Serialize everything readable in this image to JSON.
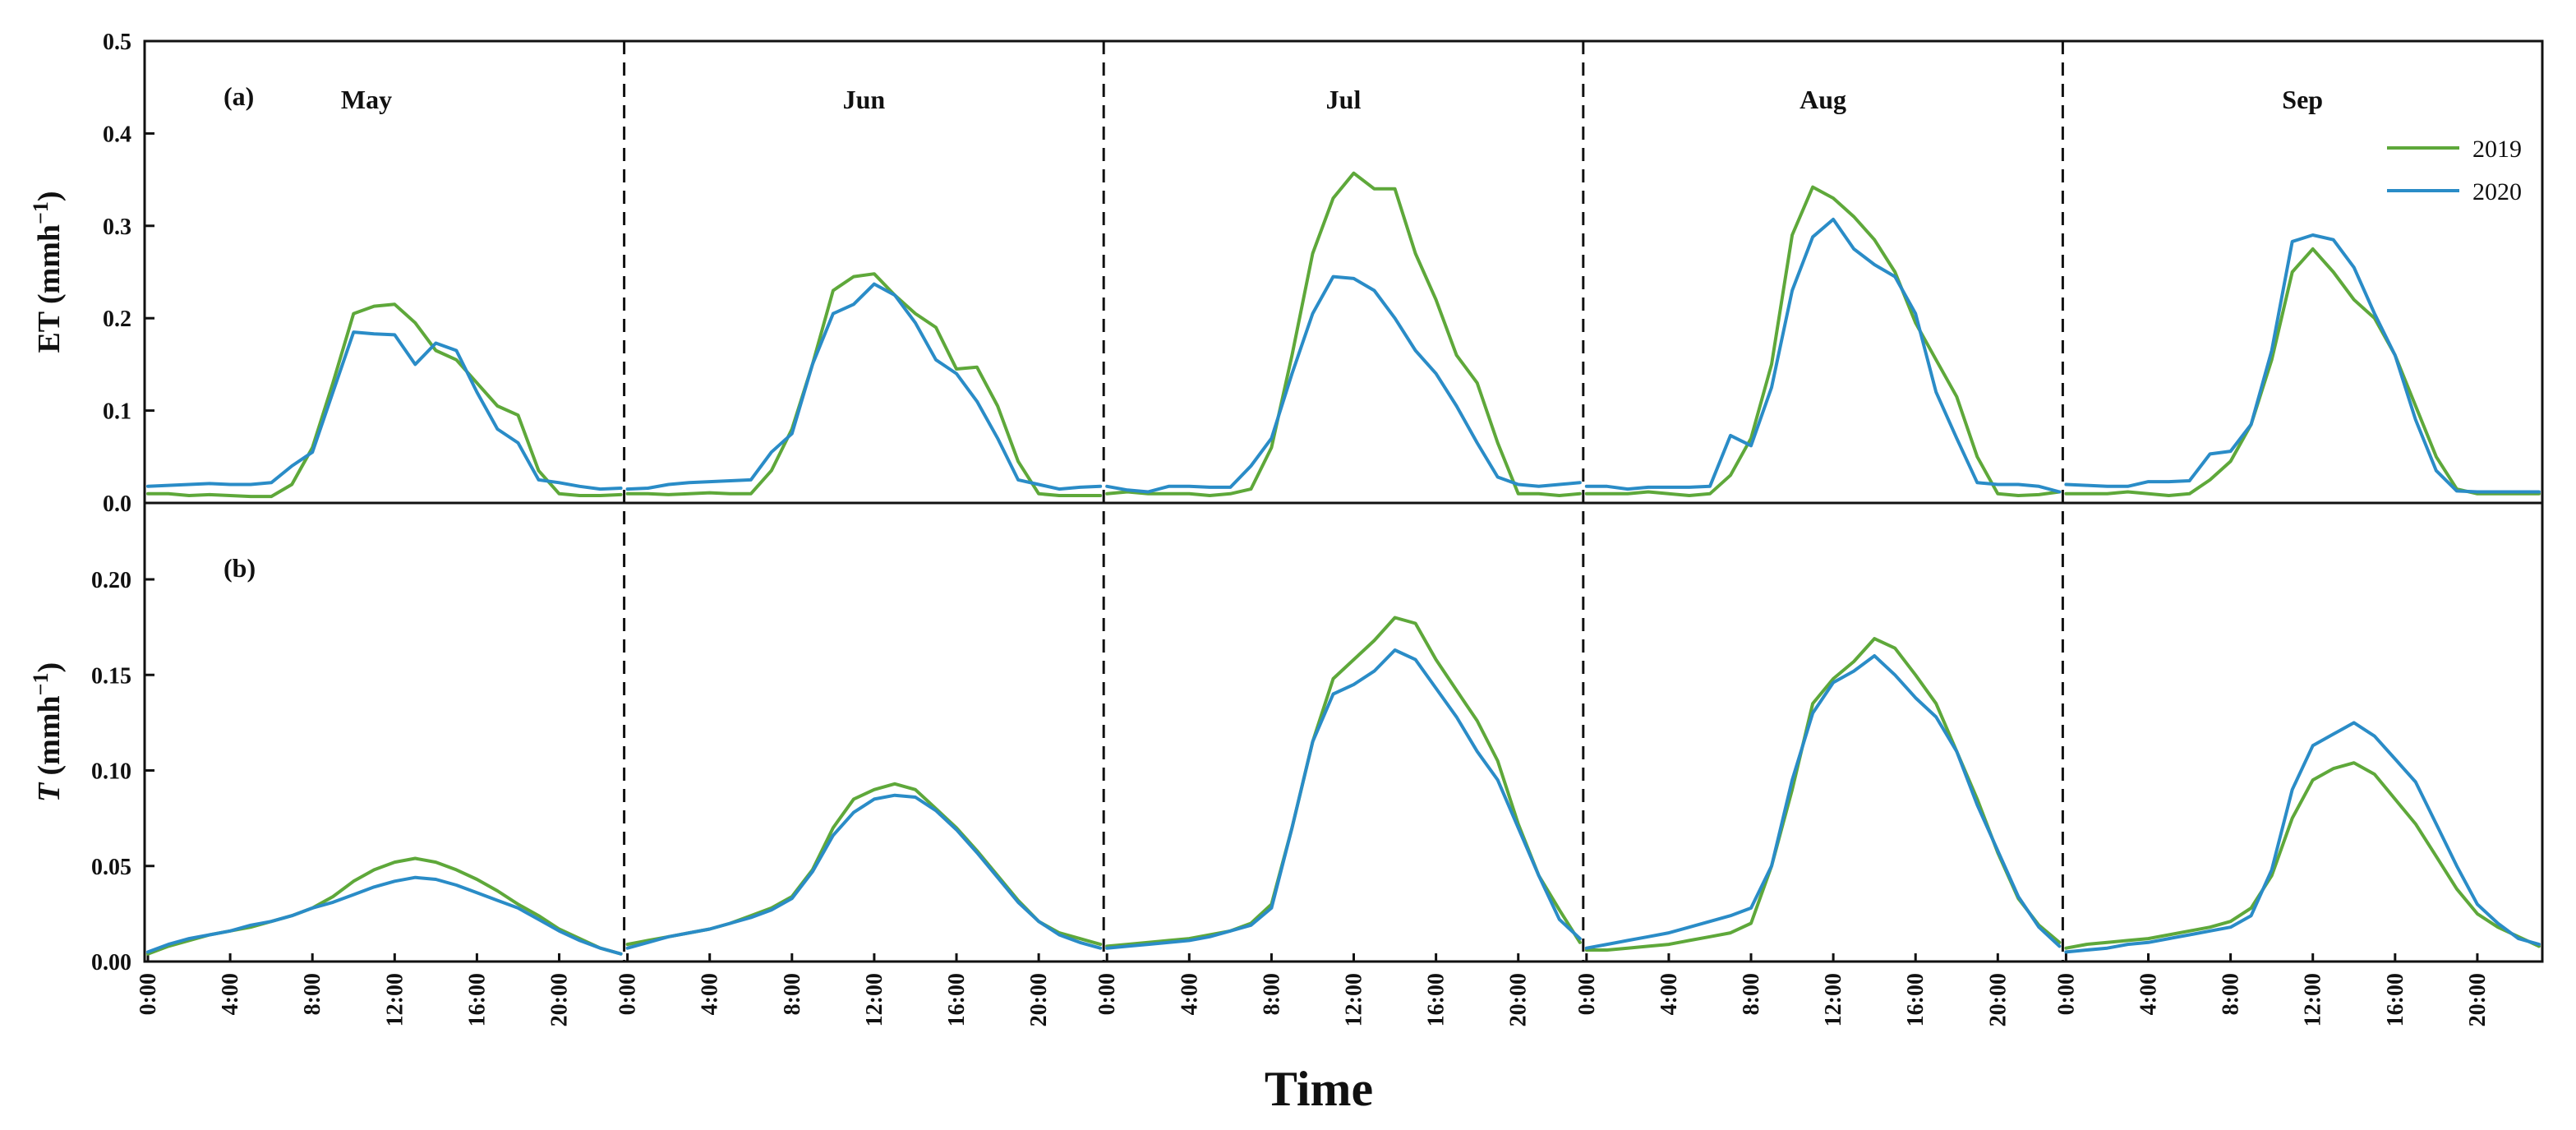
{
  "chart_data": {
    "type": "line",
    "xlabel": "Time",
    "colors": {
      "2019": "#5ea83a",
      "2020": "#2a8cc7"
    },
    "legend": {
      "position": "top-right",
      "entries": [
        "2019",
        "2020"
      ]
    },
    "months": [
      "May",
      "Jun",
      "Jul",
      "Aug",
      "Sep"
    ],
    "hours": [
      0,
      1,
      2,
      3,
      4,
      5,
      6,
      7,
      8,
      9,
      10,
      11,
      12,
      13,
      14,
      15,
      16,
      17,
      18,
      19,
      20,
      21,
      22,
      23
    ],
    "x_tick_labels": [
      "0:00",
      "4:00",
      "8:00",
      "12:00",
      "16:00",
      "20:00"
    ],
    "panels": [
      {
        "id": "a",
        "label": "(a)",
        "ylabel_main": "ET (mmh",
        "ylabel_sup": "−1",
        "ylabel_end": ")",
        "ylabel_italic": false,
        "ylim": [
          0,
          0.5
        ],
        "yticks": [
          0,
          0.1,
          0.2,
          0.3,
          0.4,
          0.5
        ],
        "ytick_labels": [
          "0.0",
          "0.1",
          "0.2",
          "0.3",
          "0.4",
          "0.5"
        ],
        "series": {
          "May": {
            "2019": [
              0.01,
              0.01,
              0.008,
              0.009,
              0.008,
              0.007,
              0.007,
              0.02,
              0.06,
              0.13,
              0.205,
              0.213,
              0.215,
              0.195,
              0.165,
              0.155,
              0.13,
              0.105,
              0.095,
              0.035,
              0.01,
              0.008,
              0.008,
              0.009
            ],
            "2020": [
              0.018,
              0.019,
              0.02,
              0.021,
              0.02,
              0.02,
              0.022,
              0.04,
              0.055,
              0.12,
              0.185,
              0.183,
              0.182,
              0.15,
              0.173,
              0.165,
              0.12,
              0.08,
              0.065,
              0.025,
              0.022,
              0.018,
              0.015,
              0.016
            ]
          },
          "Jun": {
            "2019": [
              0.01,
              0.01,
              0.009,
              0.01,
              0.011,
              0.01,
              0.01,
              0.035,
              0.08,
              0.15,
              0.23,
              0.245,
              0.248,
              0.225,
              0.205,
              0.19,
              0.145,
              0.147,
              0.105,
              0.045,
              0.01,
              0.008,
              0.008,
              0.008
            ],
            "2020": [
              0.015,
              0.016,
              0.02,
              0.022,
              0.023,
              0.024,
              0.025,
              0.055,
              0.075,
              0.15,
              0.205,
              0.215,
              0.237,
              0.225,
              0.195,
              0.155,
              0.14,
              0.11,
              0.07,
              0.025,
              0.02,
              0.015,
              0.017,
              0.018
            ]
          },
          "Jul": {
            "2019": [
              0.01,
              0.012,
              0.01,
              0.01,
              0.01,
              0.008,
              0.01,
              0.015,
              0.06,
              0.16,
              0.27,
              0.33,
              0.357,
              0.34,
              0.34,
              0.27,
              0.22,
              0.16,
              0.13,
              0.065,
              0.01,
              0.01,
              0.008,
              0.01
            ],
            "2020": [
              0.018,
              0.014,
              0.012,
              0.018,
              0.018,
              0.017,
              0.017,
              0.04,
              0.07,
              0.14,
              0.205,
              0.245,
              0.243,
              0.23,
              0.2,
              0.165,
              0.14,
              0.105,
              0.065,
              0.028,
              0.02,
              0.018,
              0.02,
              0.022
            ]
          },
          "Aug": {
            "2019": [
              0.01,
              0.01,
              0.01,
              0.012,
              0.01,
              0.008,
              0.01,
              0.03,
              0.07,
              0.15,
              0.29,
              0.342,
              0.33,
              0.31,
              0.285,
              0.25,
              0.195,
              0.155,
              0.115,
              0.05,
              0.01,
              0.008,
              0.009,
              0.012
            ],
            "2020": [
              0.018,
              0.018,
              0.015,
              0.017,
              0.017,
              0.017,
              0.018,
              0.073,
              0.062,
              0.125,
              0.23,
              0.288,
              0.307,
              0.275,
              0.258,
              0.245,
              0.205,
              0.12,
              0.07,
              0.022,
              0.02,
              0.02,
              0.018,
              0.012
            ]
          },
          "Sep": {
            "2019": [
              0.01,
              0.01,
              0.01,
              0.012,
              0.01,
              0.008,
              0.01,
              0.025,
              0.045,
              0.085,
              0.155,
              0.25,
              0.275,
              0.25,
              0.22,
              0.2,
              0.16,
              0.105,
              0.05,
              0.015,
              0.01,
              0.01,
              0.01,
              0.01
            ],
            "2020": [
              0.02,
              0.019,
              0.018,
              0.018,
              0.023,
              0.023,
              0.024,
              0.053,
              0.056,
              0.085,
              0.165,
              0.283,
              0.29,
              0.285,
              0.255,
              0.205,
              0.16,
              0.09,
              0.035,
              0.013,
              0.012,
              0.012,
              0.012,
              0.012
            ]
          }
        }
      },
      {
        "id": "b",
        "label": "(b)",
        "ylabel_main": "T",
        "ylabel_sup": "−1",
        "ylabel_end": ")",
        "ylabel_mid": " (mmh",
        "ylabel_italic": true,
        "ylim": [
          0,
          0.24
        ],
        "yticks": [
          0,
          0.05,
          0.1,
          0.15,
          0.2
        ],
        "ytick_labels": [
          "0.00",
          "0.05",
          "0.10",
          "0.15",
          "0.20"
        ],
        "series": {
          "May": {
            "2019": [
              0.004,
              0.008,
              0.011,
              0.014,
              0.016,
              0.018,
              0.021,
              0.024,
              0.028,
              0.034,
              0.042,
              0.048,
              0.052,
              0.054,
              0.052,
              0.048,
              0.043,
              0.037,
              0.03,
              0.024,
              0.017,
              0.012,
              0.007,
              0.004
            ],
            "2020": [
              0.005,
              0.009,
              0.012,
              0.014,
              0.016,
              0.019,
              0.021,
              0.024,
              0.028,
              0.031,
              0.035,
              0.039,
              0.042,
              0.044,
              0.043,
              0.04,
              0.036,
              0.032,
              0.028,
              0.022,
              0.016,
              0.011,
              0.007,
              0.004
            ]
          },
          "Jun": {
            "2019": [
              0.009,
              0.011,
              0.013,
              0.015,
              0.017,
              0.02,
              0.024,
              0.028,
              0.034,
              0.048,
              0.07,
              0.085,
              0.09,
              0.093,
              0.09,
              0.08,
              0.07,
              0.058,
              0.045,
              0.032,
              0.021,
              0.015,
              0.012,
              0.009
            ],
            "2020": [
              0.007,
              0.01,
              0.013,
              0.015,
              0.017,
              0.02,
              0.023,
              0.027,
              0.033,
              0.047,
              0.066,
              0.078,
              0.085,
              0.087,
              0.086,
              0.079,
              0.069,
              0.057,
              0.044,
              0.031,
              0.021,
              0.014,
              0.01,
              0.007
            ]
          },
          "Jul": {
            "2019": [
              0.008,
              0.009,
              0.01,
              0.011,
              0.012,
              0.014,
              0.016,
              0.02,
              0.03,
              0.07,
              0.115,
              0.148,
              0.158,
              0.168,
              0.18,
              0.177,
              0.158,
              0.142,
              0.126,
              0.105,
              0.072,
              0.045,
              0.027,
              0.01
            ],
            "2020": [
              0.007,
              0.008,
              0.009,
              0.01,
              0.011,
              0.013,
              0.016,
              0.019,
              0.028,
              0.07,
              0.115,
              0.14,
              0.145,
              0.152,
              0.163,
              0.158,
              0.143,
              0.128,
              0.11,
              0.095,
              0.07,
              0.045,
              0.022,
              0.012
            ]
          },
          "Aug": {
            "2019": [
              0.006,
              0.006,
              0.007,
              0.008,
              0.009,
              0.011,
              0.013,
              0.015,
              0.02,
              0.05,
              0.09,
              0.135,
              0.148,
              0.157,
              0.169,
              0.164,
              0.15,
              0.135,
              0.11,
              0.085,
              0.057,
              0.033,
              0.019,
              0.01
            ],
            "2020": [
              0.007,
              0.009,
              0.011,
              0.013,
              0.015,
              0.018,
              0.021,
              0.024,
              0.028,
              0.05,
              0.095,
              0.13,
              0.146,
              0.152,
              0.16,
              0.15,
              0.138,
              0.128,
              0.11,
              0.082,
              0.058,
              0.034,
              0.018,
              0.008
            ]
          },
          "Sep": {
            "2019": [
              0.007,
              0.009,
              0.01,
              0.011,
              0.012,
              0.014,
              0.016,
              0.018,
              0.021,
              0.028,
              0.045,
              0.075,
              0.095,
              0.101,
              0.104,
              0.098,
              0.085,
              0.072,
              0.055,
              0.038,
              0.025,
              0.018,
              0.013,
              0.008
            ],
            "2020": [
              0.005,
              0.006,
              0.007,
              0.009,
              0.01,
              0.012,
              0.014,
              0.016,
              0.018,
              0.024,
              0.048,
              0.09,
              0.113,
              0.119,
              0.125,
              0.118,
              0.106,
              0.094,
              0.072,
              0.05,
              0.03,
              0.02,
              0.012,
              0.009
            ]
          }
        }
      }
    ]
  }
}
